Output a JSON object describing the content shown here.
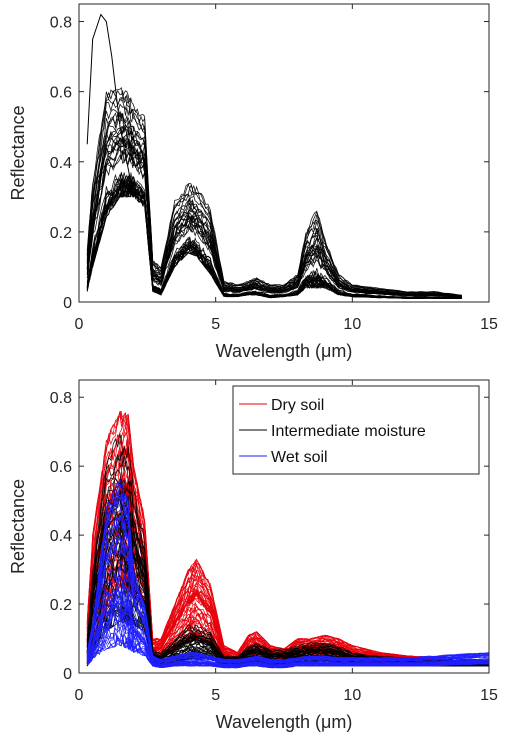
{
  "chart_data": [
    {
      "type": "line",
      "xlabel": "Wavelength (μm)",
      "ylabel": "Reflectance",
      "xlim": [
        0,
        15
      ],
      "ylim": [
        0,
        0.85
      ],
      "xticks": [
        0,
        5,
        10,
        15
      ],
      "yticks": [
        0,
        0.2,
        0.4,
        0.6,
        0.8
      ],
      "xtick_labels": [
        "0",
        "5",
        "10",
        "15"
      ],
      "ytick_labels": [
        "0",
        "0.2",
        "0.4",
        "0.6",
        "0.8"
      ],
      "grid": false,
      "legend": "none",
      "series": [
        {
          "color": "#000000",
          "count": 45,
          "x": [
            0.3,
            0.5,
            1.0,
            1.5,
            1.8,
            2.0,
            2.4,
            2.7,
            3.0,
            3.5,
            4.0,
            4.3,
            4.8,
            5.3,
            5.8,
            6.2,
            6.5,
            7.0,
            7.5,
            8.0,
            8.3,
            8.7,
            9.0,
            9.5,
            10.0,
            11.0,
            12.0,
            13.0,
            14.0
          ],
          "values": [
            0.08,
            0.2,
            0.38,
            0.46,
            0.48,
            0.45,
            0.43,
            0.06,
            0.05,
            0.17,
            0.25,
            0.26,
            0.18,
            0.03,
            0.025,
            0.035,
            0.04,
            0.025,
            0.03,
            0.05,
            0.12,
            0.1,
            0.1,
            0.04,
            0.03,
            0.025,
            0.02,
            0.018,
            0.015
          ],
          "min": [
            0.03,
            0.1,
            0.24,
            0.3,
            0.3,
            0.3,
            0.27,
            0.03,
            0.02,
            0.1,
            0.14,
            0.13,
            0.08,
            0.015,
            0.015,
            0.02,
            0.02,
            0.012,
            0.015,
            0.02,
            0.04,
            0.04,
            0.04,
            0.02,
            0.015,
            0.012,
            0.01,
            0.01,
            0.01
          ],
          "max": [
            0.15,
            0.35,
            0.6,
            0.62,
            0.6,
            0.56,
            0.53,
            0.12,
            0.1,
            0.29,
            0.34,
            0.33,
            0.27,
            0.06,
            0.05,
            0.06,
            0.07,
            0.05,
            0.05,
            0.08,
            0.2,
            0.27,
            0.18,
            0.08,
            0.05,
            0.04,
            0.03,
            0.03,
            0.02
          ],
          "outlier": {
            "x": [
              0.3,
              0.5,
              0.8,
              1.0,
              1.2,
              1.5,
              2.0
            ],
            "values": [
              0.45,
              0.75,
              0.82,
              0.8,
              0.7,
              0.5,
              0.3
            ]
          }
        }
      ]
    },
    {
      "type": "line",
      "xlabel": "Wavelength (μm)",
      "ylabel": "Reflectance",
      "xlim": [
        0,
        15
      ],
      "ylim": [
        0,
        0.85
      ],
      "xticks": [
        0,
        5,
        10,
        15
      ],
      "yticks": [
        0,
        0.2,
        0.4,
        0.6,
        0.8
      ],
      "xtick_labels": [
        "0",
        "5",
        "10",
        "15"
      ],
      "ytick_labels": [
        "0",
        "0.2",
        "0.4",
        "0.6",
        "0.8"
      ],
      "grid": false,
      "legend": "top-right",
      "series": [
        {
          "name": "Dry soil",
          "color": "#e8000b",
          "count": 55,
          "x": [
            0.3,
            0.5,
            1.0,
            1.5,
            1.8,
            2.0,
            2.4,
            2.7,
            3.0,
            3.5,
            4.0,
            4.3,
            4.8,
            5.3,
            5.8,
            6.2,
            6.5,
            7.0,
            7.5,
            8.0,
            8.5,
            9.0,
            9.5,
            10.0,
            11.0,
            12.0,
            13.0,
            14.0,
            15.0
          ],
          "values": [
            0.05,
            0.15,
            0.32,
            0.4,
            0.4,
            0.38,
            0.35,
            0.05,
            0.06,
            0.12,
            0.18,
            0.18,
            0.14,
            0.04,
            0.03,
            0.06,
            0.07,
            0.04,
            0.04,
            0.06,
            0.07,
            0.08,
            0.07,
            0.05,
            0.04,
            0.035,
            0.03,
            0.025,
            0.025
          ],
          "min": [
            0.02,
            0.07,
            0.18,
            0.25,
            0.24,
            0.22,
            0.2,
            0.03,
            0.04,
            0.07,
            0.09,
            0.1,
            0.08,
            0.03,
            0.02,
            0.03,
            0.04,
            0.03,
            0.03,
            0.04,
            0.04,
            0.05,
            0.04,
            0.03,
            0.03,
            0.025,
            0.02,
            0.02,
            0.02
          ],
          "max": [
            0.15,
            0.4,
            0.68,
            0.76,
            0.75,
            0.6,
            0.45,
            0.1,
            0.1,
            0.2,
            0.3,
            0.33,
            0.26,
            0.08,
            0.06,
            0.11,
            0.12,
            0.08,
            0.07,
            0.1,
            0.1,
            0.11,
            0.1,
            0.08,
            0.06,
            0.05,
            0.045,
            0.035,
            0.03
          ]
        },
        {
          "name": "Intermediate moisture",
          "color": "#000000",
          "count": 40,
          "x": [
            0.3,
            0.5,
            1.0,
            1.5,
            1.8,
            2.0,
            2.4,
            2.7,
            3.0,
            3.5,
            4.0,
            4.3,
            4.8,
            5.3,
            5.8,
            6.2,
            6.5,
            7.0,
            7.5,
            8.0,
            8.5,
            9.0,
            9.5,
            10.0,
            11.0,
            12.0,
            13.0,
            14.0,
            15.0
          ],
          "values": [
            0.04,
            0.1,
            0.25,
            0.3,
            0.3,
            0.28,
            0.22,
            0.03,
            0.03,
            0.06,
            0.08,
            0.08,
            0.07,
            0.03,
            0.03,
            0.05,
            0.05,
            0.04,
            0.04,
            0.05,
            0.06,
            0.06,
            0.05,
            0.04,
            0.035,
            0.03,
            0.03,
            0.03,
            0.03
          ],
          "min": [
            0.02,
            0.06,
            0.12,
            0.15,
            0.14,
            0.14,
            0.12,
            0.02,
            0.02,
            0.03,
            0.04,
            0.04,
            0.04,
            0.02,
            0.02,
            0.03,
            0.03,
            0.025,
            0.025,
            0.03,
            0.03,
            0.035,
            0.03,
            0.025,
            0.02,
            0.02,
            0.02,
            0.02,
            0.02
          ],
          "max": [
            0.1,
            0.3,
            0.65,
            0.7,
            0.66,
            0.55,
            0.4,
            0.07,
            0.06,
            0.1,
            0.14,
            0.14,
            0.12,
            0.05,
            0.05,
            0.08,
            0.09,
            0.07,
            0.07,
            0.08,
            0.09,
            0.09,
            0.08,
            0.06,
            0.05,
            0.045,
            0.04,
            0.04,
            0.04
          ]
        },
        {
          "name": "Wet soil",
          "color": "#1f1fff",
          "count": 40,
          "x": [
            0.3,
            0.5,
            1.0,
            1.5,
            1.8,
            2.0,
            2.4,
            2.7,
            3.0,
            3.5,
            4.0,
            4.3,
            4.8,
            5.3,
            5.8,
            6.2,
            6.5,
            7.0,
            7.5,
            8.0,
            8.5,
            9.0,
            9.5,
            10.0,
            11.0,
            12.0,
            13.0,
            14.0,
            15.0
          ],
          "values": [
            0.03,
            0.06,
            0.13,
            0.15,
            0.14,
            0.12,
            0.1,
            0.03,
            0.025,
            0.03,
            0.035,
            0.035,
            0.03,
            0.025,
            0.025,
            0.03,
            0.03,
            0.025,
            0.025,
            0.03,
            0.03,
            0.035,
            0.03,
            0.03,
            0.03,
            0.03,
            0.035,
            0.04,
            0.04
          ],
          "min": [
            0.02,
            0.04,
            0.07,
            0.08,
            0.07,
            0.06,
            0.05,
            0.02,
            0.015,
            0.02,
            0.02,
            0.02,
            0.02,
            0.015,
            0.015,
            0.02,
            0.02,
            0.015,
            0.015,
            0.02,
            0.02,
            0.02,
            0.02,
            0.02,
            0.02,
            0.02,
            0.02,
            0.025,
            0.025
          ],
          "max": [
            0.06,
            0.15,
            0.48,
            0.57,
            0.5,
            0.3,
            0.2,
            0.05,
            0.04,
            0.05,
            0.06,
            0.06,
            0.05,
            0.04,
            0.04,
            0.045,
            0.05,
            0.04,
            0.04,
            0.045,
            0.05,
            0.05,
            0.045,
            0.045,
            0.045,
            0.045,
            0.05,
            0.055,
            0.06
          ]
        }
      ]
    }
  ]
}
